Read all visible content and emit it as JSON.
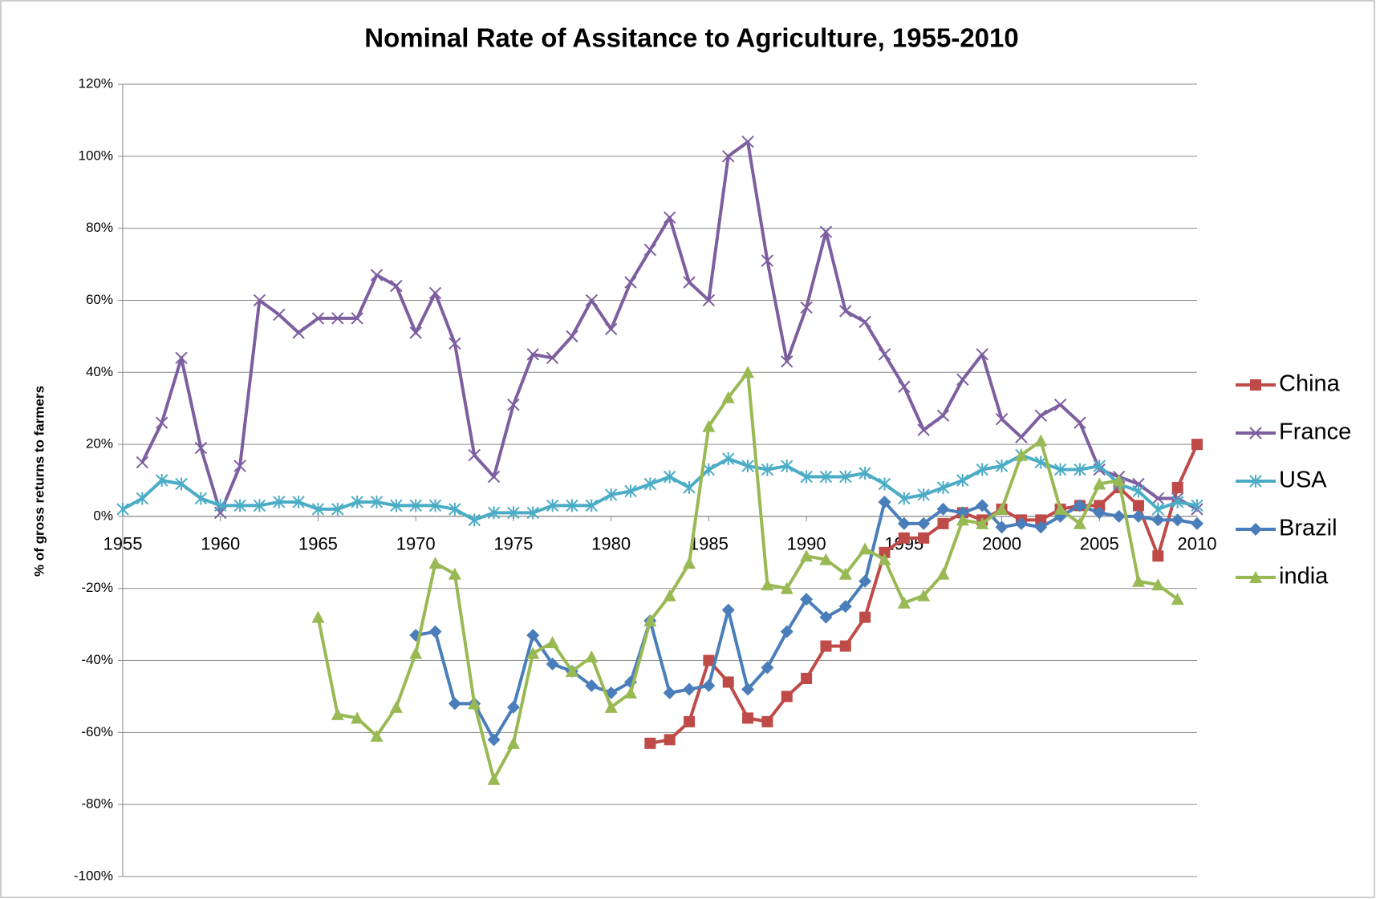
{
  "chart_data": {
    "type": "line",
    "title": "Nominal Rate of Assitance to Agriculture, 1955-2010",
    "y_label": "% of gross returns to farmers",
    "x": [
      1955,
      1956,
      1957,
      1958,
      1959,
      1960,
      1961,
      1962,
      1963,
      1964,
      1965,
      1966,
      1967,
      1968,
      1969,
      1970,
      1971,
      1972,
      1973,
      1974,
      1975,
      1976,
      1977,
      1978,
      1979,
      1980,
      1981,
      1982,
      1983,
      1984,
      1985,
      1986,
      1987,
      1988,
      1989,
      1990,
      1991,
      1992,
      1993,
      1994,
      1995,
      1996,
      1997,
      1998,
      1999,
      2000,
      2001,
      2002,
      2003,
      2004,
      2005,
      2006,
      2007,
      2008,
      2009,
      2010
    ],
    "xlim": [
      1955,
      2010
    ],
    "xticks": [
      1955,
      1960,
      1965,
      1970,
      1975,
      1980,
      1985,
      1990,
      1995,
      2000,
      2005,
      2010
    ],
    "ylim": [
      -100,
      120
    ],
    "yticks": [
      {
        "value": -100,
        "label": "-100%"
      },
      {
        "value": -80,
        "label": "-80%"
      },
      {
        "value": -60,
        "label": "-60%"
      },
      {
        "value": -40,
        "label": "-40%"
      },
      {
        "value": -20,
        "label": "-20%"
      },
      {
        "value": 0,
        "label": "0%"
      },
      {
        "value": 20,
        "label": "20%"
      },
      {
        "value": 40,
        "label": "40%"
      },
      {
        "value": 60,
        "label": "60%"
      },
      {
        "value": 80,
        "label": "80%"
      },
      {
        "value": 100,
        "label": "100%"
      },
      {
        "value": 120,
        "label": "120%"
      }
    ],
    "grid": true,
    "legend": "right",
    "series": [
      {
        "name": "China",
        "color": "#be4b48",
        "marker": "square",
        "values": [
          null,
          null,
          null,
          null,
          null,
          null,
          null,
          null,
          null,
          null,
          null,
          null,
          null,
          null,
          null,
          null,
          null,
          null,
          null,
          null,
          null,
          null,
          null,
          null,
          null,
          null,
          null,
          -63,
          -62,
          -57,
          -40,
          -46,
          -56,
          -57,
          -50,
          -45,
          -36,
          -36,
          -28,
          -10,
          -6,
          -6,
          -2,
          1,
          -1,
          2,
          -1,
          -1,
          2,
          3,
          3,
          8,
          3,
          -11,
          8,
          20
        ]
      },
      {
        "name": "France",
        "color": "#7d5fa0",
        "marker": "x",
        "values": [
          null,
          15,
          26,
          44,
          19,
          1,
          14,
          60,
          56,
          51,
          55,
          55,
          55,
          67,
          64,
          51,
          62,
          48,
          17,
          11,
          31,
          45,
          44,
          50,
          60,
          52,
          65,
          74,
          83,
          65,
          60,
          100,
          104,
          71,
          43,
          58,
          79,
          57,
          54,
          45,
          36,
          24,
          28,
          38,
          45,
          27,
          22,
          28,
          31,
          26,
          13,
          11,
          9,
          5,
          5,
          2
        ]
      },
      {
        "name": "USA",
        "color": "#4bacc6",
        "marker": "star",
        "values": [
          2,
          5,
          10,
          9,
          5,
          3,
          3,
          3,
          4,
          4,
          2,
          2,
          4,
          4,
          3,
          3,
          3,
          2,
          -1,
          1,
          1,
          1,
          3,
          3,
          3,
          6,
          7,
          9,
          11,
          8,
          13,
          16,
          14,
          13,
          14,
          11,
          11,
          11,
          12,
          9,
          5,
          6,
          8,
          10,
          13,
          14,
          17,
          15,
          13,
          13,
          14,
          9,
          7,
          2,
          4,
          3
        ]
      },
      {
        "name": "Brazil",
        "color": "#4a7ebb",
        "marker": "diamond",
        "values": [
          null,
          null,
          null,
          null,
          null,
          null,
          null,
          null,
          null,
          null,
          null,
          null,
          null,
          null,
          null,
          -33,
          -32,
          -52,
          -52,
          -62,
          -53,
          -33,
          -41,
          -43,
          -47,
          -49,
          -46,
          -29,
          -49,
          -48,
          -47,
          -26,
          -48,
          -42,
          -32,
          -23,
          -28,
          -25,
          -18,
          4,
          -2,
          -2,
          2,
          1,
          3,
          -3,
          -2,
          -3,
          0,
          3,
          1,
          0,
          0,
          -1,
          -1,
          -2
        ]
      },
      {
        "name": "india",
        "color": "#98b954",
        "marker": "triangle",
        "values": [
          null,
          null,
          null,
          null,
          null,
          null,
          null,
          null,
          null,
          null,
          -28,
          -55,
          -56,
          -61,
          -53,
          -38,
          -13,
          -16,
          -52,
          -73,
          -63,
          -38,
          -35,
          -43,
          -39,
          -53,
          -49,
          -29,
          -22,
          -13,
          25,
          33,
          40,
          -19,
          -20,
          -11,
          -12,
          -16,
          -9,
          -12,
          -24,
          -22,
          -16,
          -1,
          -2,
          2,
          17,
          21,
          2,
          -2,
          9,
          10,
          -18,
          -19,
          -23,
          null
        ]
      }
    ]
  }
}
